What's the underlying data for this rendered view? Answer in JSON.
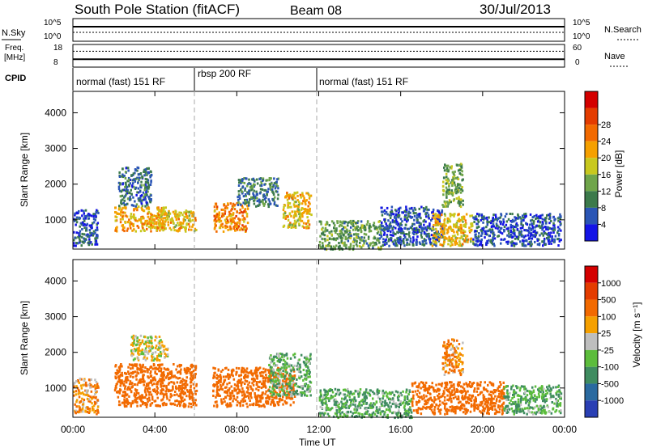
{
  "header": {
    "station": "South Pole Station (fitACF)",
    "beam": "Beam 08",
    "date": "30/Jul/2013"
  },
  "strips": {
    "nsky": {
      "left_label": "N.Sky",
      "right_label": "N.Search",
      "left_ticks": [
        "10^5",
        "10^0"
      ],
      "right_ticks": [
        "10^5",
        "10^0"
      ]
    },
    "freq": {
      "left_label_line1": "Freq.",
      "left_label_line2": "[MHz]",
      "right_label": "Nave",
      "left_ticks": [
        "18",
        "8"
      ],
      "right_ticks": [
        "60",
        "0"
      ],
      "freq_mhz": 11.5,
      "nave": 42
    },
    "cpid": {
      "label": "CPID",
      "segments": [
        {
          "label": "normal (fast) 151 RF",
          "start_hour": 0,
          "end_hour": 6
        },
        {
          "label": "rbsp 200 RF",
          "start_hour": 6,
          "end_hour": 12
        },
        {
          "label": "normal (fast) 151 RF",
          "start_hour": 12,
          "end_hour": 24
        }
      ]
    }
  },
  "axes": {
    "y_label": "Slant Range [km]",
    "x_label": "Time UT",
    "y_ticks": [
      "1000",
      "2000",
      "3000",
      "4000"
    ],
    "x_ticks": [
      "00:00",
      "04:00",
      "08:00",
      "12:00",
      "16:00",
      "20:00",
      "00:00"
    ]
  },
  "colorbars": {
    "power": {
      "label": "Power [dB]",
      "tick_labels": [
        "4",
        "8",
        "12",
        "16",
        "20",
        "24",
        "28"
      ],
      "colors": [
        "#1414e6",
        "#2a55b5",
        "#3c7a4b",
        "#6fa54a",
        "#c8c81e",
        "#f5a000",
        "#f26a00",
        "#e43c00",
        "#d40000"
      ]
    },
    "velocity": {
      "label": "Velocity [m s⁻¹]",
      "tick_labels": [
        "1000",
        "500",
        "100",
        "25",
        "-25",
        "-100",
        "-500",
        "-1000"
      ],
      "colors": [
        "#2a3fb4",
        "#2a6aa0",
        "#3f8c60",
        "#5cbd3c",
        "#bebebe",
        "#f5a000",
        "#f26a00",
        "#e43c00",
        "#d40000"
      ]
    }
  },
  "chart_data": [
    {
      "type": "heatmap",
      "name": "Power",
      "x_unit": "hours UT",
      "y_unit": "km",
      "xlim": [
        0,
        24
      ],
      "ylim": [
        180,
        4600
      ],
      "value_unit": "dB",
      "regions": [
        {
          "t0": 0.0,
          "t1": 1.2,
          "r0": 300,
          "r1": 1300,
          "value": 6
        },
        {
          "t0": 2.0,
          "t1": 4.5,
          "r0": 700,
          "r1": 1400,
          "value": 22
        },
        {
          "t0": 2.2,
          "t1": 3.8,
          "r0": 1400,
          "r1": 2500,
          "value": 8
        },
        {
          "t0": 4.0,
          "t1": 6.0,
          "r0": 700,
          "r1": 1300,
          "value": 20
        },
        {
          "t0": 6.8,
          "t1": 8.5,
          "r0": 700,
          "r1": 1500,
          "value": 24
        },
        {
          "t0": 8.0,
          "t1": 10.0,
          "r0": 1400,
          "r1": 2200,
          "value": 9
        },
        {
          "t0": 10.2,
          "t1": 11.6,
          "r0": 800,
          "r1": 1800,
          "value": 20
        },
        {
          "t0": 12.0,
          "t1": 15.0,
          "r0": 200,
          "r1": 1000,
          "value": 12
        },
        {
          "t0": 15.0,
          "t1": 18.0,
          "r0": 300,
          "r1": 1400,
          "value": 6
        },
        {
          "t0": 17.5,
          "t1": 19.5,
          "r0": 300,
          "r1": 1200,
          "value": 20
        },
        {
          "t0": 18.0,
          "t1": 19.0,
          "r0": 1400,
          "r1": 2600,
          "value": 14
        },
        {
          "t0": 19.5,
          "t1": 23.8,
          "r0": 300,
          "r1": 1200,
          "value": 6
        }
      ]
    },
    {
      "type": "heatmap",
      "name": "Velocity",
      "x_unit": "hours UT",
      "y_unit": "km",
      "xlim": [
        0,
        24
      ],
      "ylim": [
        180,
        4600
      ],
      "value_unit": "m s-1",
      "regions": [
        {
          "t0": 0.0,
          "t1": 1.2,
          "r0": 300,
          "r1": 1300,
          "value": -100
        },
        {
          "t0": 2.0,
          "t1": 6.0,
          "r0": 500,
          "r1": 1700,
          "value": -300
        },
        {
          "t0": 2.8,
          "t1": 4.6,
          "r0": 1800,
          "r1": 2500,
          "value": 0
        },
        {
          "t0": 6.8,
          "t1": 10.8,
          "r0": 500,
          "r1": 1600,
          "value": -300
        },
        {
          "t0": 9.5,
          "t1": 11.6,
          "r0": 800,
          "r1": 2000,
          "value": 80
        },
        {
          "t0": 12.0,
          "t1": 16.5,
          "r0": 200,
          "r1": 1000,
          "value": 100
        },
        {
          "t0": 16.5,
          "t1": 21.0,
          "r0": 300,
          "r1": 1200,
          "value": -300
        },
        {
          "t0": 18.0,
          "t1": 19.0,
          "r0": 1400,
          "r1": 2400,
          "value": -100
        },
        {
          "t0": 21.0,
          "t1": 23.8,
          "r0": 300,
          "r1": 1100,
          "value": 100
        }
      ]
    }
  ]
}
